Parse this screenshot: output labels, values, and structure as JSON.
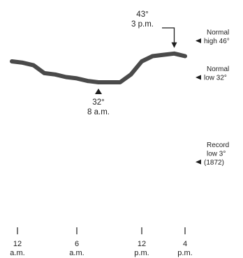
{
  "chart_data": {
    "type": "line",
    "title": "",
    "xlabel": "",
    "ylabel": "",
    "ylim": [
      0,
      50
    ],
    "x": [
      0,
      1,
      2,
      3,
      4,
      5,
      6,
      7,
      8,
      9,
      10,
      11,
      12,
      13,
      14,
      15,
      16
    ],
    "series": [
      {
        "values": [
          40,
          39.5,
          38.5,
          35.5,
          35,
          34,
          33.5,
          32.5,
          32,
          32,
          32,
          35,
          40,
          42,
          42.5,
          43,
          42
        ]
      }
    ],
    "x_ticks": [
      {
        "value": 0,
        "lines": [
          "12",
          "a.m."
        ]
      },
      {
        "value": 6,
        "lines": [
          "6",
          "a.m."
        ]
      },
      {
        "value": 12,
        "lines": [
          "12",
          "p.m."
        ]
      },
      {
        "value": 16,
        "lines": [
          "4",
          "p.m."
        ]
      }
    ],
    "reference_lines": [
      {
        "value": 46,
        "lines": [
          "Normal",
          "high 46°"
        ]
      },
      {
        "value": 32,
        "lines": [
          "Normal",
          "low 32°"
        ]
      },
      {
        "value": 3,
        "lines": [
          "Record",
          "low 3°",
          "(1872)"
        ]
      }
    ],
    "annotations": {
      "peak": {
        "x": 15,
        "y": 43,
        "lines": [
          "43°",
          "3 p.m."
        ]
      },
      "low": {
        "x": 8,
        "y": 32,
        "lines": [
          "32°",
          "8 a.m."
        ]
      }
    },
    "colors": {
      "line": "#4a4a4a",
      "text": "#1e1e1e"
    }
  }
}
